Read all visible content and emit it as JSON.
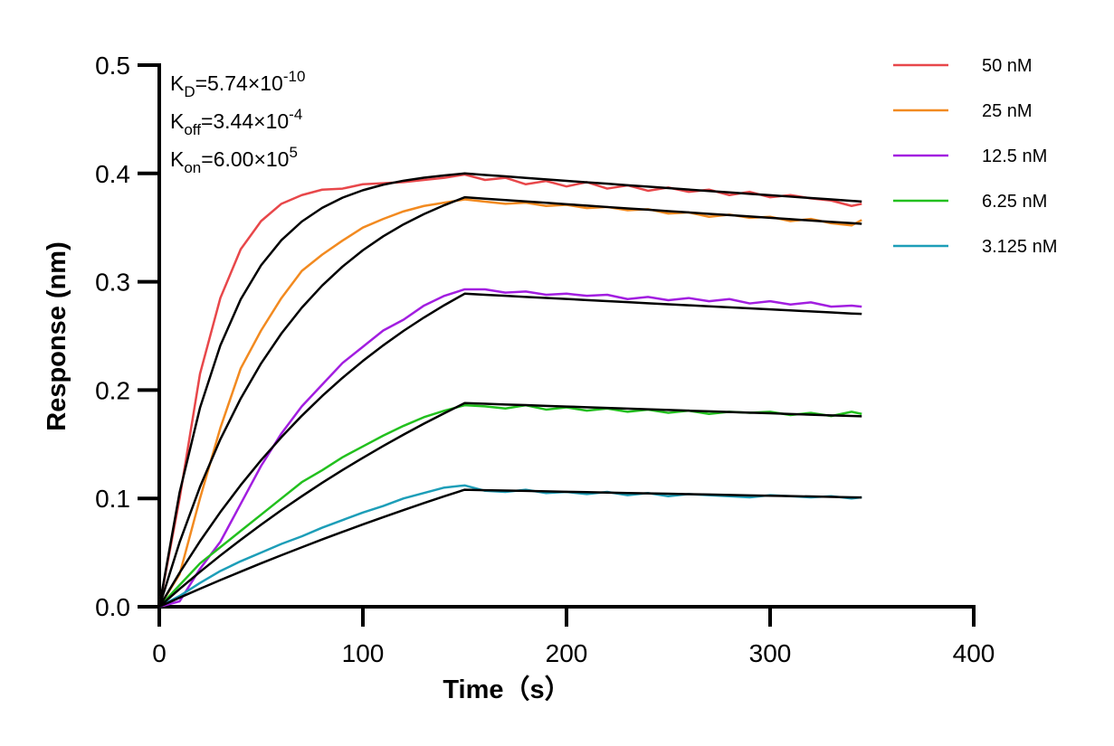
{
  "chart_data": {
    "type": "line",
    "xlabel": "Time（s）",
    "ylabel": "Response (nm)",
    "annotations": [
      {
        "symbol": "K",
        "subscript": "D",
        "text": "=5.74×10",
        "exponent": "-10"
      },
      {
        "symbol": "K",
        "subscript": "off",
        "text": "=3.44×10",
        "exponent": "-4"
      },
      {
        "symbol": "K",
        "subscript": "on",
        "text": "=6.00×10",
        "exponent": "5"
      }
    ],
    "xlim": [
      0,
      400
    ],
    "xticks": [
      0,
      100,
      200,
      300,
      400
    ],
    "ylim": [
      0,
      0.5
    ],
    "yticks": [
      {
        "value": 0,
        "label": "0.0"
      },
      0.1,
      0.2,
      0.3,
      0.4,
      0.5
    ],
    "legend": "right",
    "x": [
      0,
      10,
      20,
      30,
      40,
      50,
      60,
      70,
      80,
      90,
      100,
      110,
      120,
      130,
      140,
      150,
      160,
      170,
      180,
      190,
      200,
      210,
      220,
      230,
      240,
      250,
      260,
      270,
      280,
      290,
      300,
      310,
      320,
      330,
      340,
      345
    ],
    "series": [
      {
        "name": "50 nM",
        "color": "#e8474a",
        "values": [
          0,
          0.1,
          0.215,
          0.285,
          0.33,
          0.356,
          0.372,
          0.38,
          0.385,
          0.386,
          0.39,
          0.391,
          0.392,
          0.394,
          0.396,
          0.399,
          0.394,
          0.396,
          0.39,
          0.393,
          0.388,
          0.392,
          0.386,
          0.389,
          0.384,
          0.387,
          0.383,
          0.385,
          0.38,
          0.383,
          0.378,
          0.38,
          0.377,
          0.375,
          0.37,
          0.372
        ]
      },
      {
        "name": "25 nM",
        "color": "#f28a20",
        "values": [
          0,
          0.03,
          0.1,
          0.165,
          0.22,
          0.255,
          0.285,
          0.31,
          0.325,
          0.338,
          0.35,
          0.358,
          0.365,
          0.37,
          0.373,
          0.376,
          0.374,
          0.372,
          0.373,
          0.37,
          0.371,
          0.368,
          0.369,
          0.366,
          0.367,
          0.363,
          0.364,
          0.36,
          0.362,
          0.359,
          0.36,
          0.356,
          0.358,
          0.354,
          0.352,
          0.357
        ]
      },
      {
        "name": "12.5 nM",
        "color": "#a21ee0",
        "values": [
          0,
          0.005,
          0.035,
          0.06,
          0.095,
          0.13,
          0.16,
          0.185,
          0.205,
          0.225,
          0.24,
          0.255,
          0.265,
          0.278,
          0.287,
          0.293,
          0.293,
          0.29,
          0.291,
          0.288,
          0.289,
          0.287,
          0.288,
          0.284,
          0.286,
          0.283,
          0.285,
          0.282,
          0.284,
          0.28,
          0.282,
          0.279,
          0.281,
          0.277,
          0.278,
          0.277
        ]
      },
      {
        "name": "6.25 nM",
        "color": "#22c01e",
        "values": [
          0,
          0.02,
          0.04,
          0.055,
          0.07,
          0.085,
          0.1,
          0.115,
          0.126,
          0.138,
          0.148,
          0.158,
          0.167,
          0.175,
          0.181,
          0.186,
          0.185,
          0.183,
          0.186,
          0.182,
          0.184,
          0.181,
          0.183,
          0.18,
          0.182,
          0.179,
          0.181,
          0.178,
          0.18,
          0.179,
          0.18,
          0.177,
          0.179,
          0.176,
          0.18,
          0.178
        ]
      },
      {
        "name": "3.125 nM",
        "color": "#1d9eb8",
        "values": [
          0,
          0.01,
          0.022,
          0.033,
          0.042,
          0.05,
          0.058,
          0.065,
          0.073,
          0.08,
          0.087,
          0.093,
          0.1,
          0.105,
          0.11,
          0.112,
          0.107,
          0.106,
          0.108,
          0.105,
          0.106,
          0.104,
          0.106,
          0.103,
          0.105,
          0.102,
          0.104,
          0.103,
          0.102,
          0.101,
          0.103,
          0.102,
          0.101,
          0.102,
          0.1,
          0.101
        ]
      }
    ],
    "fits": [
      {
        "color": "#000000",
        "values": [
          0,
          0.1056,
          0.1836,
          0.2412,
          0.2838,
          0.3152,
          0.3384,
          0.3556,
          0.3682,
          0.3776,
          0.3845,
          0.3896,
          0.3933,
          0.3961,
          0.3982,
          0.4,
          0.3986,
          0.3973,
          0.3959,
          0.3945,
          0.3932,
          0.3918,
          0.3905,
          0.3891,
          0.3878,
          0.3865,
          0.3851,
          0.3838,
          0.3825,
          0.3812,
          0.3799,
          0.3786,
          0.3773,
          0.376,
          0.3747,
          0.3741
        ]
      },
      {
        "color": "#000000",
        "values": [
          0,
          0.0596,
          0.1107,
          0.1546,
          0.1922,
          0.2246,
          0.2523,
          0.2761,
          0.2965,
          0.314,
          0.3291,
          0.342,
          0.353,
          0.3625,
          0.3707,
          0.378,
          0.3767,
          0.3754,
          0.3742,
          0.3729,
          0.3716,
          0.3703,
          0.369,
          0.3677,
          0.3665,
          0.3652,
          0.364,
          0.3627,
          0.3615,
          0.3603,
          0.359,
          0.3578,
          0.3565,
          0.3553,
          0.3541,
          0.3535
        ]
      },
      {
        "color": "#000000",
        "values": [
          0,
          0.0314,
          0.0605,
          0.0874,
          0.1123,
          0.1353,
          0.1566,
          0.1763,
          0.1945,
          0.2113,
          0.2269,
          0.2413,
          0.2547,
          0.267,
          0.2784,
          0.289,
          0.288,
          0.287,
          0.286,
          0.2851,
          0.2841,
          0.2831,
          0.2821,
          0.2812,
          0.2802,
          0.2792,
          0.2783,
          0.2773,
          0.2764,
          0.2755,
          0.2745,
          0.2736,
          0.2726,
          0.2717,
          0.2707,
          0.2703
        ]
      },
      {
        "color": "#000000",
        "values": [
          0,
          0.0164,
          0.0322,
          0.0473,
          0.0618,
          0.0758,
          0.0892,
          0.102,
          0.1144,
          0.1262,
          0.1375,
          0.1484,
          0.1589,
          0.169,
          0.1786,
          0.188,
          0.1874,
          0.1867,
          0.1861,
          0.1854,
          0.1848,
          0.1842,
          0.1835,
          0.1829,
          0.1823,
          0.1817,
          0.181,
          0.1804,
          0.1798,
          0.1792,
          0.1786,
          0.1779,
          0.1773,
          0.1767,
          0.1761,
          0.1758
        ]
      },
      {
        "color": "#000000",
        "values": [
          0,
          0.0084,
          0.0166,
          0.0246,
          0.0324,
          0.0401,
          0.0476,
          0.0549,
          0.0621,
          0.0691,
          0.076,
          0.0827,
          0.0893,
          0.0957,
          0.102,
          0.108,
          0.1076,
          0.1073,
          0.1069,
          0.1065,
          0.1061,
          0.1058,
          0.1054,
          0.105,
          0.1047,
          0.1043,
          0.1039,
          0.1036,
          0.1032,
          0.1028,
          0.1025,
          0.1021,
          0.1018,
          0.1014,
          0.101,
          0.1009
        ]
      }
    ]
  }
}
